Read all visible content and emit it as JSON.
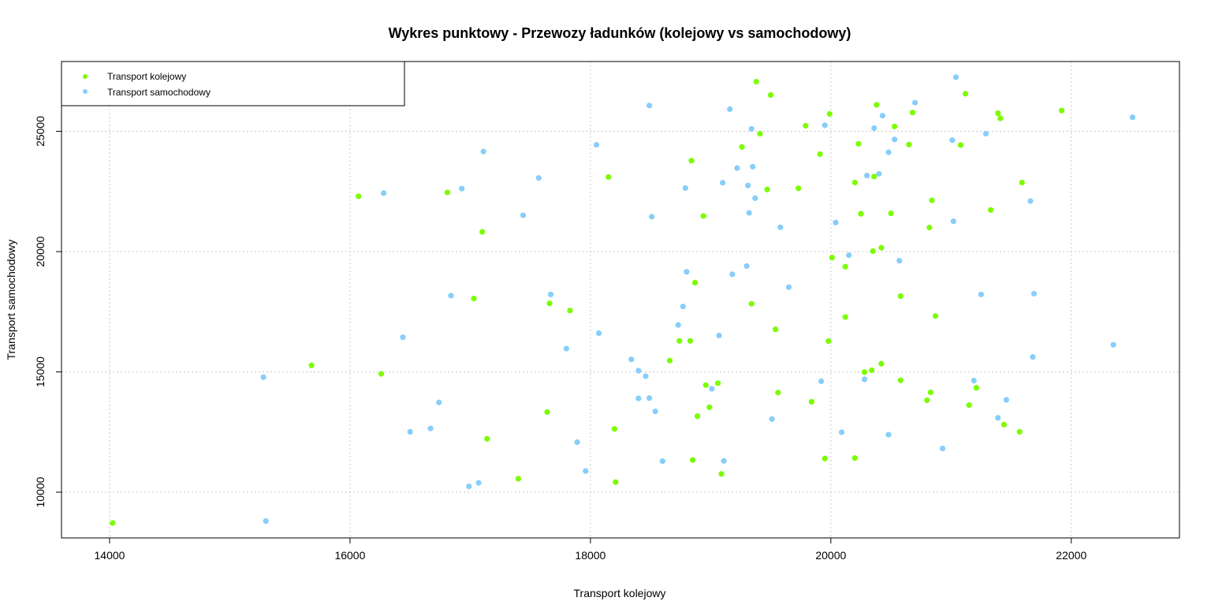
{
  "chart_data": {
    "type": "scatter",
    "title": "Wykres punktowy - Przewozy ładunków (kolejowy vs samochodowy)",
    "xlabel": "Transport kolejowy",
    "ylabel": "Transport samochodowy",
    "xlim": [
      13600,
      22900
    ],
    "ylim": [
      8100,
      27900
    ],
    "xticks": [
      14000,
      16000,
      18000,
      20000,
      22000
    ],
    "yticks": [
      10000,
      15000,
      20000,
      25000
    ],
    "xtick_labels": [
      "14000",
      "16000",
      "18000",
      "20000",
      "22000"
    ],
    "ytick_labels": [
      "10000",
      "15000",
      "20000",
      "25000"
    ],
    "grid": true,
    "legend_position": "top-left",
    "series": [
      {
        "name": "Transport kolejowy",
        "color": "#7CFC00",
        "points": [
          [
            14025,
            8720
          ],
          [
            15680,
            15270
          ],
          [
            16070,
            22300
          ],
          [
            16260,
            14920
          ],
          [
            16810,
            22460
          ],
          [
            17030,
            18050
          ],
          [
            17100,
            20820
          ],
          [
            17140,
            12220
          ],
          [
            17400,
            10560
          ],
          [
            17640,
            13330
          ],
          [
            17660,
            17850
          ],
          [
            17830,
            17550
          ],
          [
            18150,
            23100
          ],
          [
            18200,
            12630
          ],
          [
            18210,
            10420
          ],
          [
            18660,
            15470
          ],
          [
            18740,
            16290
          ],
          [
            18830,
            16290
          ],
          [
            18840,
            23780
          ],
          [
            18850,
            11340
          ],
          [
            18870,
            18710
          ],
          [
            18890,
            13160
          ],
          [
            18940,
            21480
          ],
          [
            18960,
            14450
          ],
          [
            18990,
            13530
          ],
          [
            19060,
            14530
          ],
          [
            19090,
            10760
          ],
          [
            19260,
            24350
          ],
          [
            19340,
            17830
          ],
          [
            19380,
            27060
          ],
          [
            19410,
            24900
          ],
          [
            19470,
            22580
          ],
          [
            19500,
            26510
          ],
          [
            19540,
            16770
          ],
          [
            19560,
            14140
          ],
          [
            19730,
            22630
          ],
          [
            19790,
            25230
          ],
          [
            19840,
            13760
          ],
          [
            19910,
            24050
          ],
          [
            19950,
            11400
          ],
          [
            19980,
            16280
          ],
          [
            19990,
            25720
          ],
          [
            20010,
            19750
          ],
          [
            20120,
            19370
          ],
          [
            20120,
            17280
          ],
          [
            20200,
            22870
          ],
          [
            20200,
            11420
          ],
          [
            20230,
            24480
          ],
          [
            20250,
            21570
          ],
          [
            20280,
            14990
          ],
          [
            20340,
            15070
          ],
          [
            20350,
            20020
          ],
          [
            20360,
            23120
          ],
          [
            20380,
            26100
          ],
          [
            20420,
            20160
          ],
          [
            20420,
            15340
          ],
          [
            20500,
            21590
          ],
          [
            20530,
            25200
          ],
          [
            20580,
            18150
          ],
          [
            20580,
            14650
          ],
          [
            20650,
            24450
          ],
          [
            20680,
            25780
          ],
          [
            20800,
            13820
          ],
          [
            20820,
            21000
          ],
          [
            20830,
            14150
          ],
          [
            20840,
            22130
          ],
          [
            20870,
            17320
          ],
          [
            21080,
            24430
          ],
          [
            21120,
            26560
          ],
          [
            21150,
            13620
          ],
          [
            21210,
            14340
          ],
          [
            21330,
            21730
          ],
          [
            21390,
            25750
          ],
          [
            21410,
            25540
          ],
          [
            21440,
            12810
          ],
          [
            21570,
            12510
          ],
          [
            21590,
            22870
          ],
          [
            21920,
            25860
          ]
        ]
      },
      {
        "name": "Transport samochodowy",
        "color": "#87CEFA",
        "points": [
          [
            15280,
            14780
          ],
          [
            15300,
            8800
          ],
          [
            16280,
            22430
          ],
          [
            16440,
            16440
          ],
          [
            16500,
            12510
          ],
          [
            16670,
            12650
          ],
          [
            16740,
            13730
          ],
          [
            16840,
            18170
          ],
          [
            16930,
            22620
          ],
          [
            16990,
            10240
          ],
          [
            17070,
            10390
          ],
          [
            17110,
            24160
          ],
          [
            17440,
            21510
          ],
          [
            17570,
            23060
          ],
          [
            17670,
            18220
          ],
          [
            17800,
            15970
          ],
          [
            17890,
            12080
          ],
          [
            17960,
            10880
          ],
          [
            18050,
            24440
          ],
          [
            18070,
            16610
          ],
          [
            18340,
            15520
          ],
          [
            18400,
            13900
          ],
          [
            18400,
            15050
          ],
          [
            18460,
            14820
          ],
          [
            18490,
            26070
          ],
          [
            18490,
            13910
          ],
          [
            18510,
            21450
          ],
          [
            18540,
            13360
          ],
          [
            18600,
            11290
          ],
          [
            18730,
            16950
          ],
          [
            18770,
            17720
          ],
          [
            18790,
            22640
          ],
          [
            18800,
            19160
          ],
          [
            19070,
            16510
          ],
          [
            19010,
            14300
          ],
          [
            19100,
            22860
          ],
          [
            19110,
            11300
          ],
          [
            19160,
            25920
          ],
          [
            19180,
            19060
          ],
          [
            19220,
            23470
          ],
          [
            19300,
            19400
          ],
          [
            19310,
            22750
          ],
          [
            19320,
            21610
          ],
          [
            19340,
            25100
          ],
          [
            19350,
            23530
          ],
          [
            19370,
            22220
          ],
          [
            19510,
            13040
          ],
          [
            19580,
            21010
          ],
          [
            19650,
            18520
          ],
          [
            19920,
            14610
          ],
          [
            19950,
            25250
          ],
          [
            20040,
            21210
          ],
          [
            20090,
            12490
          ],
          [
            20150,
            19850
          ],
          [
            20280,
            14690
          ],
          [
            20300,
            23160
          ],
          [
            20360,
            25130
          ],
          [
            20400,
            23230
          ],
          [
            20430,
            25650
          ],
          [
            20480,
            24130
          ],
          [
            20480,
            12390
          ],
          [
            20530,
            24660
          ],
          [
            20570,
            19620
          ],
          [
            20700,
            26190
          ],
          [
            20930,
            11820
          ],
          [
            21010,
            24630
          ],
          [
            21020,
            21260
          ],
          [
            21040,
            27250
          ],
          [
            21250,
            18220
          ],
          [
            21290,
            24900
          ],
          [
            21190,
            14640
          ],
          [
            21390,
            13090
          ],
          [
            21460,
            13840
          ],
          [
            21660,
            22100
          ],
          [
            21680,
            15620
          ],
          [
            21690,
            18250
          ],
          [
            22350,
            16130
          ],
          [
            22510,
            25580
          ]
        ]
      }
    ]
  }
}
